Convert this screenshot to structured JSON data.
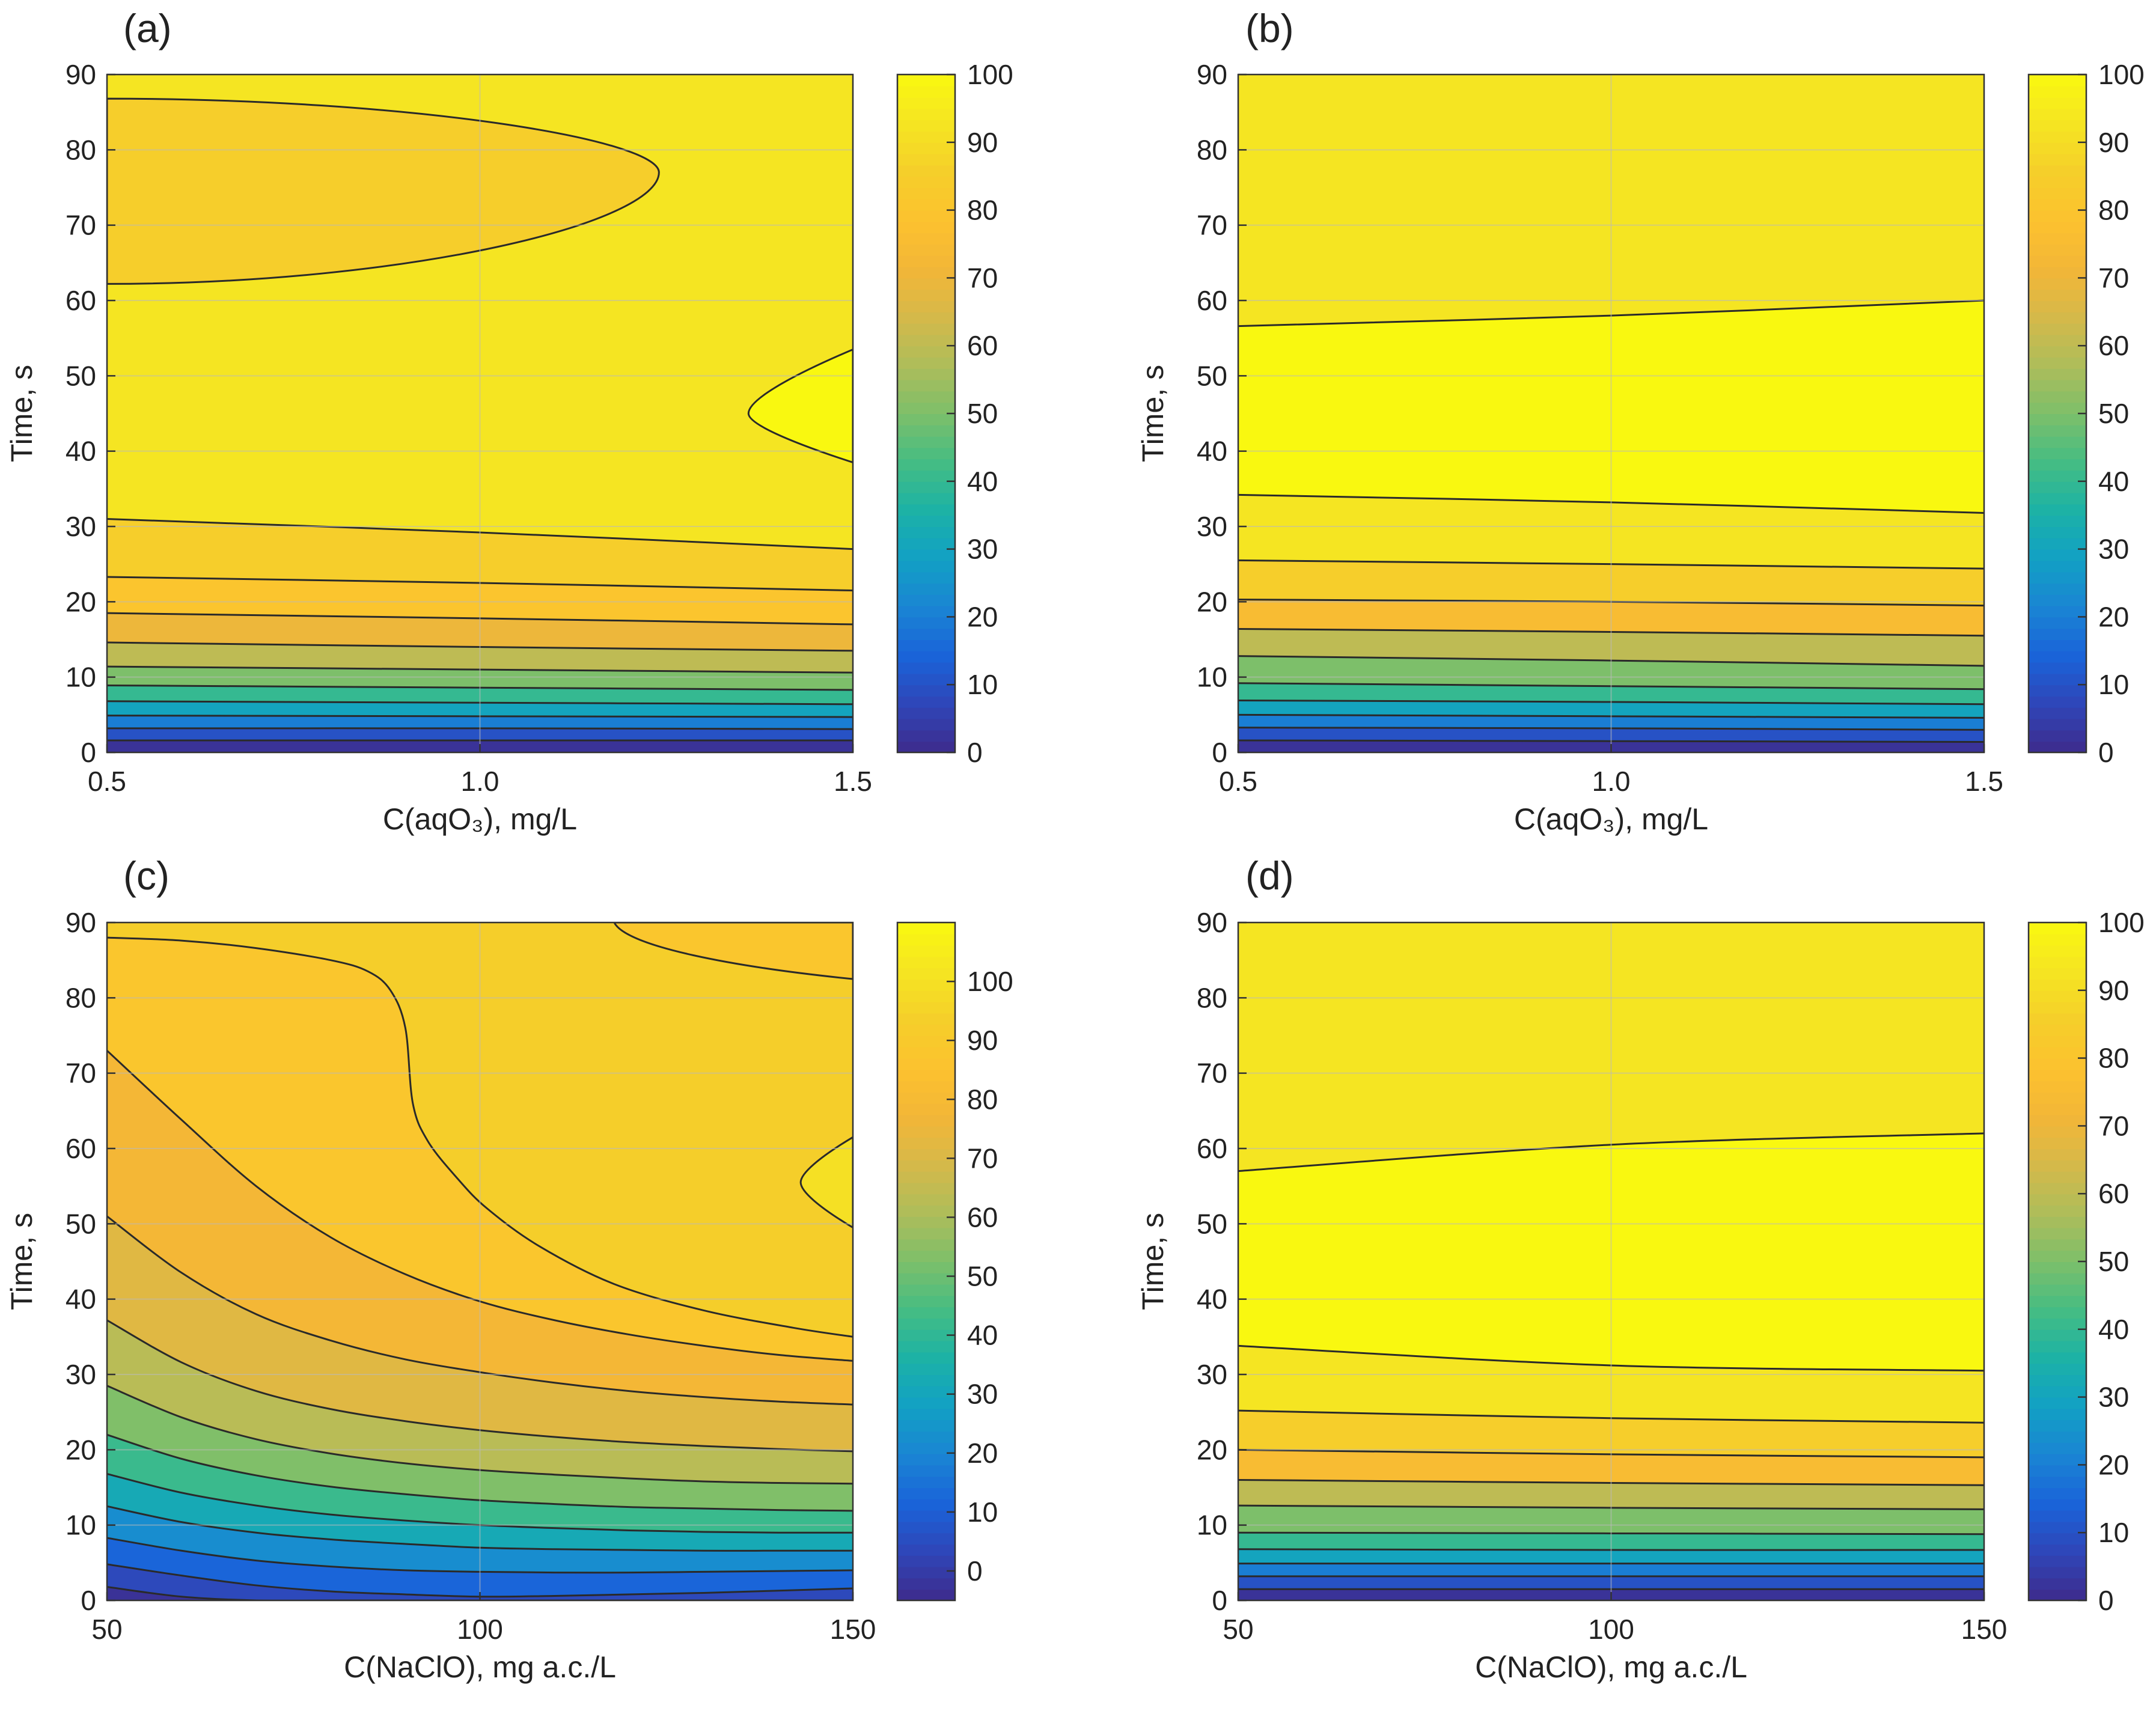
{
  "figure": {
    "description_colors": {
      "colormap": [
        "#3e2b8c",
        "#2f46b8",
        "#1a63d9",
        "#1a85d3",
        "#12a0c4",
        "#1cb2a6",
        "#45bd83",
        "#7dbf6a",
        "#aebd5a",
        "#d5b94a",
        "#f3b637",
        "#fcc22f",
        "#f5cf2a",
        "#f5e522",
        "#f9f810"
      ],
      "contour_line": "#2a2a2a",
      "grid_line": "#b9b9b9",
      "frame": "#333333"
    }
  },
  "chart_data": [
    {
      "type": "contour",
      "panel_label": "(a)",
      "title": "",
      "xlabel": "C(aqO₃), mg/L",
      "ylabel": "Time, s",
      "xlim": [
        0.5,
        1.5
      ],
      "ylim": [
        0,
        90
      ],
      "xticks": [
        0.5,
        1.0,
        1.5
      ],
      "xtick_labels": [
        "0.5",
        "1.0",
        "1.5"
      ],
      "yticks": [
        0,
        10,
        20,
        30,
        40,
        50,
        60,
        70,
        80,
        90
      ],
      "ytick_labels": [
        "0",
        "10",
        "20",
        "30",
        "40",
        "50",
        "60",
        "70",
        "80",
        "90"
      ],
      "colorbar": {
        "range": [
          0,
          100
        ],
        "ticks": [
          0,
          10,
          20,
          30,
          40,
          50,
          60,
          70,
          80,
          90,
          100
        ],
        "tick_labels": [
          "0",
          "10",
          "20",
          "30",
          "40",
          "50",
          "60",
          "70",
          "80",
          "90",
          "100"
        ]
      },
      "bands": [
        {
          "y0": [
            0,
            0,
            0
          ],
          "y1": [
            1.6,
            1.6,
            1.6
          ],
          "value": 2
        },
        {
          "y0": [
            1.6,
            1.6,
            1.6
          ],
          "y1": [
            3.2,
            3.2,
            3.1
          ],
          "value": 10
        },
        {
          "y0": [
            3.2,
            3.2,
            3.1
          ],
          "y1": [
            4.9,
            4.8,
            4.7
          ],
          "value": 20
        },
        {
          "y0": [
            4.9,
            4.8,
            4.7
          ],
          "y1": [
            6.8,
            6.6,
            6.4
          ],
          "value": 30
        },
        {
          "y0": [
            6.8,
            6.6,
            6.4
          ],
          "y1": [
            8.9,
            8.6,
            8.3
          ],
          "value": 40
        },
        {
          "y0": [
            8.9,
            8.6,
            8.3
          ],
          "y1": [
            11.4,
            11.0,
            10.6
          ],
          "value": 50
        },
        {
          "y0": [
            11.4,
            11.0,
            10.6
          ],
          "y1": [
            14.6,
            14.0,
            13.5
          ],
          "value": 60
        },
        {
          "y0": [
            14.6,
            14.0,
            13.5
          ],
          "y1": [
            18.5,
            17.8,
            17.0
          ],
          "value": 70
        },
        {
          "y0": [
            18.5,
            17.8,
            17.0
          ],
          "y1": [
            23.3,
            22.5,
            21.5
          ],
          "value": 80
        },
        {
          "y0": [
            23.3,
            22.5,
            21.5
          ],
          "y1": [
            31.0,
            29.2,
            27.0
          ],
          "value": 85
        },
        {
          "y0": [
            31.0,
            29.2,
            27.0
          ],
          "y1": [
            90,
            90,
            90
          ],
          "value": 93
        }
      ],
      "islands": [
        {
          "kind": "left-lobe",
          "x_left": 0.5,
          "x_tip": 1.24,
          "y_bottom": 62.2,
          "y_top": 86.8,
          "y_tip": 77,
          "value": 85
        },
        {
          "kind": "right-lobe",
          "x_right": 1.5,
          "x_tip": 1.36,
          "y_bottom": 38.5,
          "y_top": 53.5,
          "y_tip": 45,
          "value": 100
        }
      ]
    },
    {
      "type": "contour",
      "panel_label": "(b)",
      "title": "",
      "xlabel": "C(aqO₃), mg/L",
      "ylabel": "Time, s",
      "xlim": [
        0.5,
        1.5
      ],
      "ylim": [
        0,
        90
      ],
      "xticks": [
        0.5,
        1.0,
        1.5
      ],
      "xtick_labels": [
        "0.5",
        "1.0",
        "1.5"
      ],
      "yticks": [
        0,
        10,
        20,
        30,
        40,
        50,
        60,
        70,
        80,
        90
      ],
      "ytick_labels": [
        "0",
        "10",
        "20",
        "30",
        "40",
        "50",
        "60",
        "70",
        "80",
        "90"
      ],
      "colorbar": {
        "range": [
          0,
          100
        ],
        "ticks": [
          0,
          10,
          20,
          30,
          40,
          50,
          60,
          70,
          80,
          90,
          100
        ],
        "tick_labels": [
          "0",
          "10",
          "20",
          "30",
          "40",
          "50",
          "60",
          "70",
          "80",
          "90",
          "100"
        ]
      },
      "bands": [
        {
          "y0": [
            0,
            0,
            0
          ],
          "y1": [
            1.6,
            1.5,
            1.4
          ],
          "value": 2
        },
        {
          "y0": [
            1.6,
            1.5,
            1.4
          ],
          "y1": [
            3.3,
            3.2,
            3.0
          ],
          "value": 10
        },
        {
          "y0": [
            3.3,
            3.2,
            3.0
          ],
          "y1": [
            5.0,
            4.8,
            4.6
          ],
          "value": 20
        },
        {
          "y0": [
            5.0,
            4.8,
            4.6
          ],
          "y1": [
            6.9,
            6.7,
            6.4
          ],
          "value": 30
        },
        {
          "y0": [
            6.9,
            6.7,
            6.4
          ],
          "y1": [
            9.2,
            8.8,
            8.4
          ],
          "value": 40
        },
        {
          "y0": [
            9.2,
            8.8,
            8.4
          ],
          "y1": [
            12.8,
            12.2,
            11.5
          ],
          "value": 50
        },
        {
          "y0": [
            12.8,
            12.2,
            11.5
          ],
          "y1": [
            16.4,
            16.0,
            15.5
          ],
          "value": 60
        },
        {
          "y0": [
            16.4,
            16.0,
            15.5
          ],
          "y1": [
            20.3,
            20.0,
            19.5
          ],
          "value": 75
        },
        {
          "y0": [
            20.3,
            20.0,
            19.5
          ],
          "y1": [
            25.5,
            25.0,
            24.4
          ],
          "value": 85
        },
        {
          "y0": [
            25.5,
            25.0,
            24.4
          ],
          "y1": [
            34.2,
            33.2,
            31.8
          ],
          "value": 93
        },
        {
          "y0": [
            34.2,
            33.2,
            31.8
          ],
          "y1": [
            56.6,
            58.0,
            60.0
          ],
          "value": 100
        },
        {
          "y0": [
            56.6,
            58.0,
            60.0
          ],
          "y1": [
            90,
            90,
            90
          ],
          "value": 93
        }
      ],
      "islands": []
    },
    {
      "type": "contour",
      "panel_label": "(c)",
      "title": "",
      "xlabel": "C(NaClO), mg a.c./L",
      "ylabel": "Time, s",
      "xlim": [
        50,
        150
      ],
      "ylim": [
        0,
        90
      ],
      "xticks": [
        50,
        100,
        150
      ],
      "xtick_labels": [
        "50",
        "100",
        "150"
      ],
      "yticks": [
        0,
        10,
        20,
        30,
        40,
        50,
        60,
        70,
        80,
        90
      ],
      "ytick_labels": [
        "0",
        "10",
        "20",
        "30",
        "40",
        "50",
        "60",
        "70",
        "80",
        "90"
      ],
      "colorbar": {
        "range": [
          -5,
          110
        ],
        "ticks": [
          0,
          10,
          20,
          30,
          40,
          50,
          60,
          70,
          80,
          90,
          100
        ],
        "tick_labels": [
          "0",
          "10",
          "20",
          "30",
          "40",
          "50",
          "60",
          "70",
          "80",
          "90",
          "100"
        ]
      },
      "bands": [
        {
          "y0": [
            0,
            0,
            0,
            0,
            0,
            0,
            0,
            0,
            0,
            0,
            0
          ],
          "y1": [
            1.8,
            0.5,
            0,
            0,
            0,
            0,
            0,
            0,
            0,
            0,
            0
          ],
          "value": -3
        },
        {
          "y0": [
            1.8,
            0.5,
            0,
            0,
            0,
            0,
            0,
            0,
            0,
            0,
            0
          ],
          "y1": [
            4.8,
            3.3,
            2.0,
            1.2,
            0.8,
            0.5,
            0.6,
            0.8,
            1.0,
            1.3,
            1.6
          ],
          "value": 4
        },
        {
          "y0": [
            4.8,
            3.3,
            2.0,
            1.2,
            0.8,
            0.5,
            0.6,
            0.8,
            1.0,
            1.3,
            1.6
          ],
          "y1": [
            8.3,
            6.6,
            5.3,
            4.5,
            4.0,
            3.8,
            3.7,
            3.7,
            3.8,
            3.9,
            4.0
          ],
          "value": 12
        },
        {
          "y0": [
            8.3,
            6.6,
            5.3,
            4.5,
            4.0,
            3.8,
            3.7,
            3.7,
            3.8,
            3.9,
            4.0
          ],
          "y1": [
            12.5,
            10.4,
            9.0,
            8.1,
            7.5,
            7.0,
            6.8,
            6.7,
            6.6,
            6.6,
            6.6
          ],
          "value": 22
        },
        {
          "y0": [
            12.5,
            10.4,
            9.0,
            8.1,
            7.5,
            7.0,
            6.8,
            6.7,
            6.6,
            6.6,
            6.6
          ],
          "y1": [
            16.8,
            14.3,
            12.6,
            11.4,
            10.6,
            10.0,
            9.6,
            9.3,
            9.1,
            9.0,
            9.0
          ],
          "value": 32
        },
        {
          "y0": [
            16.8,
            14.3,
            12.6,
            11.4,
            10.6,
            10.0,
            9.6,
            9.3,
            9.1,
            9.0,
            9.0
          ],
          "y1": [
            22.0,
            18.8,
            16.6,
            15.1,
            14.1,
            13.3,
            12.8,
            12.4,
            12.2,
            12.0,
            11.9
          ],
          "value": 42
        },
        {
          "y0": [
            22.0,
            18.8,
            16.6,
            15.1,
            14.1,
            13.3,
            12.8,
            12.4,
            12.2,
            12.0,
            11.9
          ],
          "y1": [
            28.5,
            24.3,
            21.4,
            19.5,
            18.2,
            17.3,
            16.7,
            16.2,
            15.8,
            15.6,
            15.5
          ],
          "value": 53
        },
        {
          "y0": [
            28.5,
            24.3,
            21.4,
            19.5,
            18.2,
            17.3,
            16.7,
            16.2,
            15.8,
            15.6,
            15.5
          ],
          "y1": [
            37.2,
            31.6,
            27.8,
            25.4,
            23.8,
            22.6,
            21.7,
            21.0,
            20.5,
            20.1,
            19.8
          ],
          "value": 63
        },
        {
          "y0": [
            37.2,
            31.6,
            27.8,
            25.4,
            23.8,
            22.6,
            21.7,
            21.0,
            20.5,
            20.1,
            19.8
          ],
          "y1": [
            51.0,
            43.5,
            38.0,
            34.5,
            32.0,
            30.3,
            28.9,
            27.8,
            27.0,
            26.4,
            26.0
          ],
          "value": 72
        },
        {
          "y0": [
            51.0,
            43.5,
            38.0,
            34.5,
            32.0,
            30.3,
            28.9,
            27.8,
            27.0,
            26.4,
            26.0
          ],
          "y1": [
            73.0,
            63.8,
            55.0,
            48.2,
            43.3,
            39.7,
            37.2,
            35.3,
            33.8,
            32.6,
            31.8
          ],
          "value": 78
        }
      ],
      "top_fill_value": 88,
      "region_boundaries": {
        "orange_top": [
          [
            50,
            88
          ],
          [
            60,
            87.6
          ],
          [
            70,
            86.6
          ],
          [
            80,
            85.0
          ],
          [
            85,
            83.5
          ],
          [
            88,
            81.0
          ],
          [
            90,
            76.0
          ],
          [
            91,
            66.0
          ],
          [
            93,
            61.0
          ],
          [
            97,
            56.0
          ],
          [
            101,
            52.0
          ],
          [
            108,
            47.0
          ],
          [
            118,
            42.0
          ],
          [
            130,
            38.5
          ],
          [
            142,
            36.2
          ],
          [
            150,
            35.0
          ]
        ],
        "yellow_fill_value": 93
      },
      "islands": [
        {
          "kind": "right-lobe",
          "x_right": 150,
          "x_tip": 143,
          "y_bottom": 49.5,
          "y_top": 61.5,
          "y_tip": 55.5,
          "value": 100
        },
        {
          "kind": "top-corner",
          "x_from": 118,
          "x_right": 150,
          "y_top": 90,
          "y_right": 82.5,
          "value": 88
        }
      ]
    },
    {
      "type": "contour",
      "panel_label": "(d)",
      "title": "",
      "xlabel": "C(NaClO), mg a.c./L",
      "ylabel": "Time, s",
      "xlim": [
        50,
        150
      ],
      "ylim": [
        0,
        90
      ],
      "xticks": [
        50,
        100,
        150
      ],
      "xtick_labels": [
        "50",
        "100",
        "150"
      ],
      "yticks": [
        0,
        10,
        20,
        30,
        40,
        50,
        60,
        70,
        80,
        90
      ],
      "ytick_labels": [
        "0",
        "10",
        "20",
        "30",
        "40",
        "50",
        "60",
        "70",
        "80",
        "90"
      ],
      "colorbar": {
        "range": [
          0,
          100
        ],
        "ticks": [
          0,
          10,
          20,
          30,
          40,
          50,
          60,
          70,
          80,
          90,
          100
        ],
        "tick_labels": [
          "0",
          "10",
          "20",
          "30",
          "40",
          "50",
          "60",
          "70",
          "80",
          "90",
          "100"
        ]
      },
      "bands": [
        {
          "y0": [
            0,
            0,
            0
          ],
          "y1": [
            1.5,
            1.5,
            1.5
          ],
          "value": 2
        },
        {
          "y0": [
            1.5,
            1.5,
            1.5
          ],
          "y1": [
            3.2,
            3.2,
            3.2
          ],
          "value": 10
        },
        {
          "y0": [
            3.2,
            3.2,
            3.2
          ],
          "y1": [
            4.9,
            4.9,
            4.9
          ],
          "value": 20
        },
        {
          "y0": [
            4.9,
            4.9,
            4.9
          ],
          "y1": [
            6.8,
            6.7,
            6.7
          ],
          "value": 30
        },
        {
          "y0": [
            6.8,
            6.7,
            6.7
          ],
          "y1": [
            9.0,
            8.9,
            8.8
          ],
          "value": 40
        },
        {
          "y0": [
            9.0,
            8.9,
            8.8
          ],
          "y1": [
            12.6,
            12.3,
            12.1
          ],
          "value": 50
        },
        {
          "y0": [
            12.6,
            12.3,
            12.1
          ],
          "y1": [
            16.0,
            15.6,
            15.3
          ],
          "value": 60
        },
        {
          "y0": [
            16.0,
            15.6,
            15.3
          ],
          "y1": [
            20.0,
            19.4,
            19.0
          ],
          "value": 75
        },
        {
          "y0": [
            20.0,
            19.4,
            19.0
          ],
          "y1": [
            25.2,
            24.2,
            23.6
          ],
          "value": 85
        },
        {
          "y0": [
            25.2,
            24.2,
            23.6
          ],
          "y1": [
            33.8,
            31.2,
            30.5
          ],
          "value": 93
        },
        {
          "y0": [
            33.8,
            31.2,
            30.5
          ],
          "y1": [
            57.0,
            60.5,
            62.0
          ],
          "value": 100
        },
        {
          "y0": [
            57.0,
            60.5,
            62.0
          ],
          "y1": [
            90,
            90,
            90
          ],
          "value": 93
        }
      ],
      "islands": []
    }
  ]
}
